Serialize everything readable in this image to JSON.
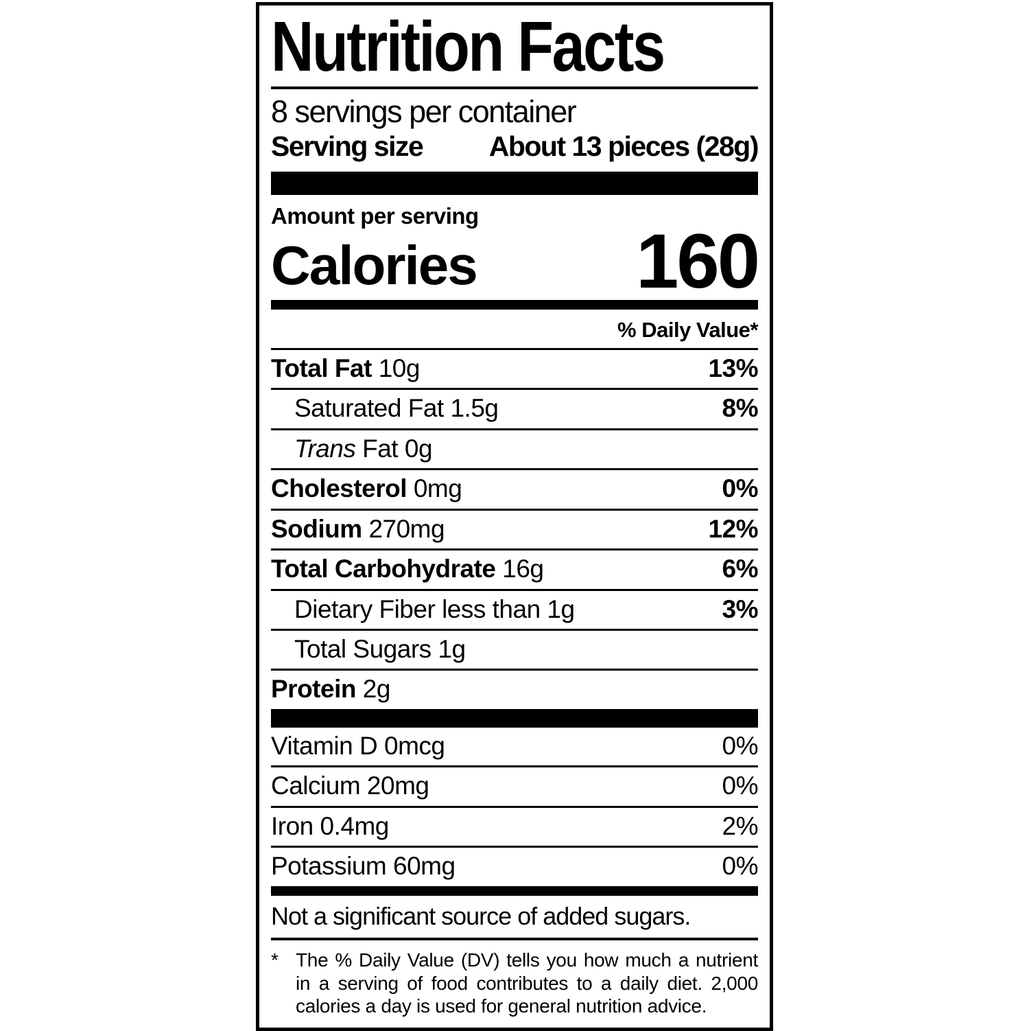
{
  "label": {
    "title": "Nutrition Facts",
    "servings_per_container": "8 servings per container",
    "serving_size_label": "Serving size",
    "serving_size_value": "About 13 pieces (28g)",
    "amount_per_serving": "Amount per serving",
    "calories_label": "Calories",
    "calories_value": "160",
    "daily_value_header": "% Daily Value*",
    "nutrients": [
      {
        "name": "Total Fat",
        "amount": "10g",
        "dv": "13%"
      },
      {
        "name": "Saturated Fat",
        "amount": "1.5g",
        "dv": "8%"
      },
      {
        "name_italic": "Trans",
        "name_rest": "Fat",
        "amount": "0g",
        "dv": ""
      },
      {
        "name": "Cholesterol",
        "amount": "0mg",
        "dv": "0%"
      },
      {
        "name": "Sodium",
        "amount": "270mg",
        "dv": "12%"
      },
      {
        "name": "Total Carbohydrate",
        "amount": "16g",
        "dv": "6%"
      },
      {
        "name": "Dietary Fiber",
        "amount": "less than 1g",
        "dv": "3%"
      },
      {
        "name": "Total Sugars",
        "amount": "1g",
        "dv": ""
      },
      {
        "name": "Protein",
        "amount": "2g",
        "dv": ""
      }
    ],
    "micronutrients": [
      {
        "name": "Vitamin D",
        "amount": "0mcg",
        "dv": "0%"
      },
      {
        "name": "Calcium",
        "amount": "20mg",
        "dv": "0%"
      },
      {
        "name": "Iron",
        "amount": "0.4mg",
        "dv": "2%"
      },
      {
        "name": "Potassium",
        "amount": "60mg",
        "dv": "0%"
      }
    ],
    "added_sugars_note": "Not a significant source of added sugars.",
    "footnote_marker": "*",
    "footnote_text": "The % Daily Value (DV) tells you how much a nutrient in a serving of food contributes to a daily diet. 2,000 calories a day is used for general nutrition advice.",
    "colors": {
      "text": "#000000",
      "background": "#ffffff"
    }
  }
}
